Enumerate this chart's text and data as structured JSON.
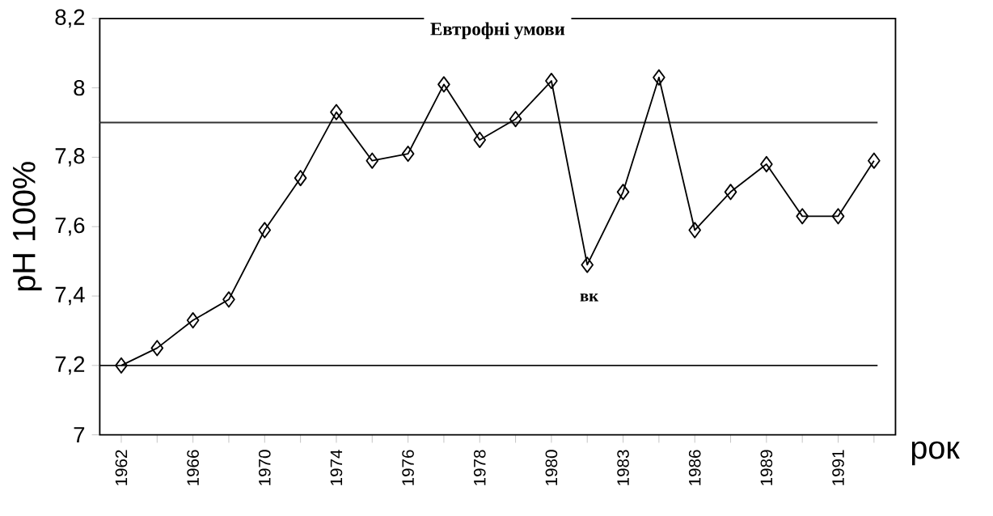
{
  "chart_data": {
    "type": "line",
    "title": "Евтрофні умови",
    "xlabel": "рок",
    "ylabel": "pH 100%",
    "categories": [
      "1962",
      null,
      "1966",
      null,
      "1970",
      null,
      "1974",
      null,
      "1976",
      null,
      "1978",
      null,
      "1980",
      null,
      "1983",
      null,
      "1986",
      null,
      "1989",
      null,
      "1991",
      null
    ],
    "series": [
      {
        "color": "#000000",
        "values": [
          7.2,
          7.25,
          7.33,
          7.39,
          7.59,
          7.74,
          7.93,
          7.79,
          7.81,
          8.01,
          7.85,
          7.91,
          8.02,
          7.49,
          7.7,
          8.03,
          7.59,
          7.7,
          7.78,
          7.63,
          7.63,
          7.79
        ]
      }
    ],
    "ylim": [
      7,
      8.2
    ],
    "yticks": [
      7,
      {
        "value": 7.2,
        "label": "7,2"
      },
      {
        "value": 7.4,
        "label": "7,4"
      },
      {
        "value": 7.6,
        "label": "7,6"
      },
      {
        "value": 7.8,
        "label": "7,8"
      },
      8,
      {
        "value": 8.2,
        "label": "8,2"
      }
    ],
    "ref_lines": [
      {
        "axis": "y",
        "value": 7.9,
        "color": "#333333"
      },
      {
        "axis": "y",
        "value": 7.2,
        "color": "#111111"
      }
    ],
    "annotations": [
      "вк"
    ],
    "marker": "diamond",
    "line_style": "solid",
    "grid": false
  }
}
